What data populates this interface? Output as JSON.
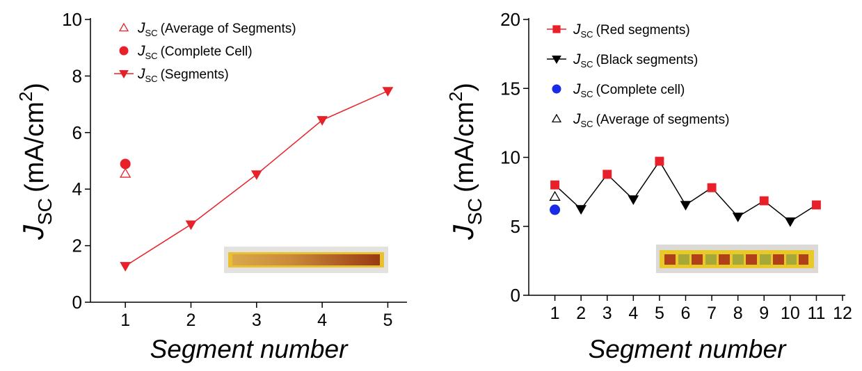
{
  "chart_data": [
    {
      "type": "line",
      "ylabel": {
        "symbol": "J",
        "subscript": "SC",
        "unit": "(mA/cm",
        "exponent": "2",
        "close": ")"
      },
      "xlabel": "Segment number",
      "legend_symbol": "J",
      "legend_subscript": "SC",
      "xlim": [
        0.5,
        5.25
      ],
      "xticks": [
        1,
        2,
        3,
        4,
        5
      ],
      "ylim": [
        0,
        10
      ],
      "yticks": [
        0,
        2,
        4,
        6,
        8,
        10
      ],
      "line_color": "#e8202a",
      "series": [
        {
          "name": "(Average of Segments)",
          "color": "#e8202a",
          "marker": "triangle-up",
          "filled": false,
          "line": false,
          "x": [
            1
          ],
          "values": [
            4.55
          ]
        },
        {
          "name": "(Complete Cell)",
          "color": "#e8202a",
          "marker": "circle",
          "filled": true,
          "line": false,
          "x": [
            1
          ],
          "values": [
            4.89
          ]
        },
        {
          "name": "(Segments)",
          "color": "#e8202a",
          "marker": "triangle-down",
          "filled": true,
          "line": true,
          "x": [
            1,
            2,
            3,
            4,
            5
          ],
          "values": [
            1.28,
            2.75,
            4.52,
            6.44,
            7.47
          ]
        }
      ]
    },
    {
      "type": "line",
      "ylabel": {
        "symbol": "J",
        "subscript": "SC",
        "unit": "(mA/cm",
        "exponent": "2",
        "close": ")"
      },
      "xlabel": "Segment number",
      "legend_symbol": "J",
      "legend_subscript": "SC",
      "xlim": [
        0,
        12
      ],
      "xticks": [
        1,
        2,
        3,
        4,
        5,
        6,
        7,
        8,
        9,
        10,
        11,
        12
      ],
      "ylim": [
        0,
        20
      ],
      "yticks": [
        0,
        5,
        10,
        15,
        20
      ],
      "line_color": "#000000",
      "series": [
        {
          "name": "(Red segments)",
          "color": "#e8202a",
          "marker": "square",
          "filled": true,
          "line": true,
          "x": [
            1,
            3,
            5,
            7,
            9,
            11
          ],
          "values": [
            8.0,
            8.77,
            9.72,
            7.8,
            6.85,
            6.55
          ]
        },
        {
          "name": "(Black segments)",
          "color": "#000000",
          "marker": "triangle-down",
          "filled": true,
          "line": true,
          "x": [
            2,
            4,
            6,
            8,
            10
          ],
          "values": [
            6.25,
            6.95,
            6.55,
            5.7,
            5.35
          ]
        },
        {
          "name": "(Complete cell)",
          "color": "#1a2be8",
          "marker": "circle",
          "filled": true,
          "line": false,
          "x": [
            1
          ],
          "values": [
            6.2
          ]
        },
        {
          "name": "(Average of segments)",
          "color": "#000000",
          "marker": "triangle-up",
          "filled": false,
          "line": false,
          "x": [
            1
          ],
          "values": [
            7.15
          ]
        }
      ]
    }
  ]
}
